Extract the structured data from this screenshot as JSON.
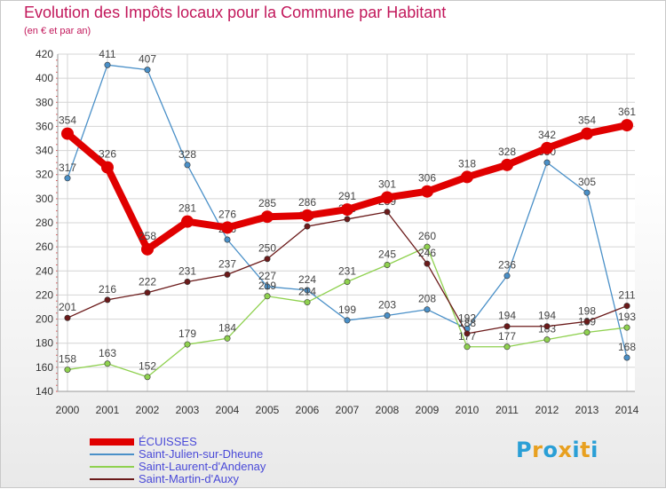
{
  "header": {
    "title": "Evolution des Impôts locaux pour la Commune par Habitant",
    "subtitle": "(en € et par an)"
  },
  "logo": {
    "text": "Proxiti",
    "letter_colors": [
      "#2a9fd6",
      "#e8a020",
      "#2a9fd6",
      "#e8a020",
      "#2a9fd6",
      "#e8a020",
      "#2a9fd6"
    ]
  },
  "chart_data": {
    "type": "line",
    "title": "Evolution des Impôts locaux pour la Commune par Habitant",
    "ylabel": "(en € et par an)",
    "xlabel": "",
    "ylim": [
      140,
      420
    ],
    "ytick_step": 20,
    "grid": true,
    "legend_position": "bottom-left",
    "categories": [
      "2000",
      "2001",
      "2002",
      "2003",
      "2004",
      "2005",
      "2006",
      "2007",
      "2008",
      "2009",
      "2010",
      "2011",
      "2012",
      "2013",
      "2014"
    ],
    "series": [
      {
        "name": "ÉCUISSES",
        "color": "#e00000",
        "values": [
          354,
          326,
          258,
          281,
          276,
          285,
          286,
          291,
          301,
          306,
          318,
          328,
          342,
          354,
          361
        ],
        "labels": [
          "354",
          "326",
          "258",
          "281",
          "276",
          "285",
          "286",
          "291",
          "301",
          "306",
          "318",
          "328",
          "342",
          "354",
          "361"
        ]
      },
      {
        "name": "Saint-Julien-sur-Dheune",
        "color": "#4a90c8",
        "values": [
          317,
          411,
          407,
          328,
          266,
          227,
          224,
          199,
          203,
          208,
          192,
          236,
          330,
          305,
          168
        ],
        "labels": [
          "317",
          "411",
          "407",
          "328",
          "266",
          "227",
          "224",
          "199",
          "203",
          "208",
          "192",
          "236",
          "330",
          "305",
          "168"
        ]
      },
      {
        "name": "Saint-Laurent-d'Andenay",
        "color": "#8fd14f",
        "values": [
          158,
          163,
          152,
          179,
          184,
          219,
          214,
          231,
          245,
          260,
          177,
          177,
          183,
          189,
          193
        ],
        "labels": [
          "158",
          "163",
          "152",
          "179",
          "184",
          "219",
          "214",
          "231",
          "245",
          "260",
          "177",
          "177",
          "183",
          "189",
          "193"
        ]
      },
      {
        "name": "Saint-Martin-d'Auxy",
        "color": "#6b1a1a",
        "values": [
          201,
          216,
          222,
          231,
          237,
          250,
          277,
          283,
          289,
          246,
          188,
          194,
          194,
          198,
          211
        ],
        "labels": [
          "201",
          "216",
          "222",
          "231",
          "237",
          "250",
          "277",
          "283",
          "289",
          "246",
          "188",
          "194",
          "194",
          "198",
          "211"
        ]
      }
    ]
  }
}
